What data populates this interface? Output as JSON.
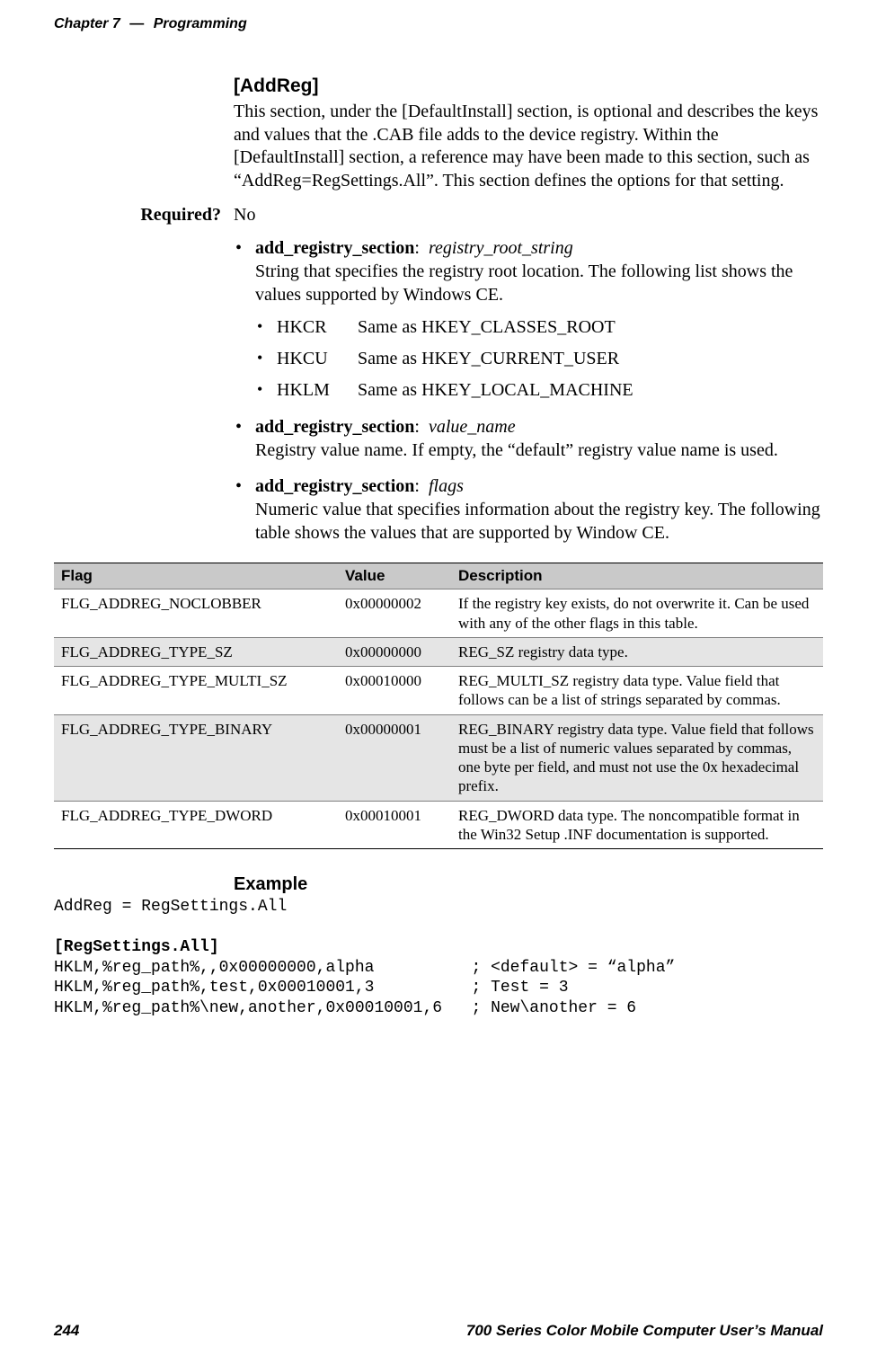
{
  "running_head": {
    "chapter": "Chapter 7",
    "dash": "—",
    "title": "Programming"
  },
  "section": {
    "title": "[AddReg]",
    "intro": "This section, under the [DefaultInstall] section, is optional and describes the keys and values that the .CAB file adds to the device registry. Within the [DefaultInstall] section, a reference may have been made to this section, such as “AddReg=RegSettings.All”. This section defines the options for that setting.",
    "bold_tokens": [
      "DefaultInstall",
      "DefaultInstall"
    ]
  },
  "required": {
    "label": "Required?",
    "value": "No"
  },
  "bullets": [
    {
      "head_bold": "add_registry_section",
      "head_sep": ":",
      "head_italic": "registry_root_string",
      "text": "String that specifies the registry root location. The following list shows the values supported by Windows CE.",
      "sub": [
        {
          "k": "HKCR",
          "v": "Same as HKEY_CLASSES_ROOT"
        },
        {
          "k": "HKCU",
          "v": "Same as HKEY_CURRENT_USER"
        },
        {
          "k": "HKLM",
          "v": "Same as HKEY_LOCAL_MACHINE"
        }
      ]
    },
    {
      "head_bold": "add_registry_section",
      "head_sep": ":",
      "head_italic": "value_name",
      "text": "Registry value name. If empty, the “default” registry value name is used."
    },
    {
      "head_bold": "add_registry_section",
      "head_sep": ":",
      "head_italic": "flags",
      "text": "Numeric value that specifies information about the registry key. The following table shows the values that are supported by Window CE."
    }
  ],
  "table": {
    "columns": [
      "Flag",
      "Value",
      "Description"
    ],
    "rows": [
      {
        "alt": false,
        "flag": "FLG_ADDREG_NOCLOBBER",
        "value": "0x00000002",
        "desc": "If the registry key exists, do not overwrite it. Can be used with any of the other flags in this table."
      },
      {
        "alt": true,
        "flag": "FLG_ADDREG_TYPE_SZ",
        "value": "0x00000000",
        "desc": "REG_SZ registry data type."
      },
      {
        "alt": false,
        "flag": "FLG_ADDREG_TYPE_MULTI_SZ",
        "value": "0x00010000",
        "desc": "REG_MULTI_SZ registry data type. Value field that follows can be a list of strings separated by commas."
      },
      {
        "alt": true,
        "flag": "FLG_ADDREG_TYPE_BINARY",
        "value": "0x00000001",
        "desc": "REG_BINARY registry data type. Value field that follows must be a list of numeric values separated by commas, one byte per field, and must not use the 0x hexadecimal prefix."
      },
      {
        "alt": false,
        "flag": "FLG_ADDREG_TYPE_DWORD",
        "value": "0x00010001",
        "desc": "REG_DWORD data type. The noncompatible format in the Win32 Setup .INF documentation is supported."
      }
    ]
  },
  "example": {
    "title": "Example",
    "lines": [
      "AddReg = RegSettings.All",
      "",
      "[RegSettings.All]",
      "HKLM,%reg_path%,,0x00000000,alpha          ; <default> = “alpha”",
      "HKLM,%reg_path%,test,0x00010001,3          ; Test = 3",
      "HKLM,%reg_path%\\new,another,0x00010001,6   ; New\\another = 6"
    ],
    "bold_line_index": 2
  },
  "footer": {
    "page_number": "244",
    "manual_title": "700 Series Color Mobile Computer User’s Manual"
  }
}
